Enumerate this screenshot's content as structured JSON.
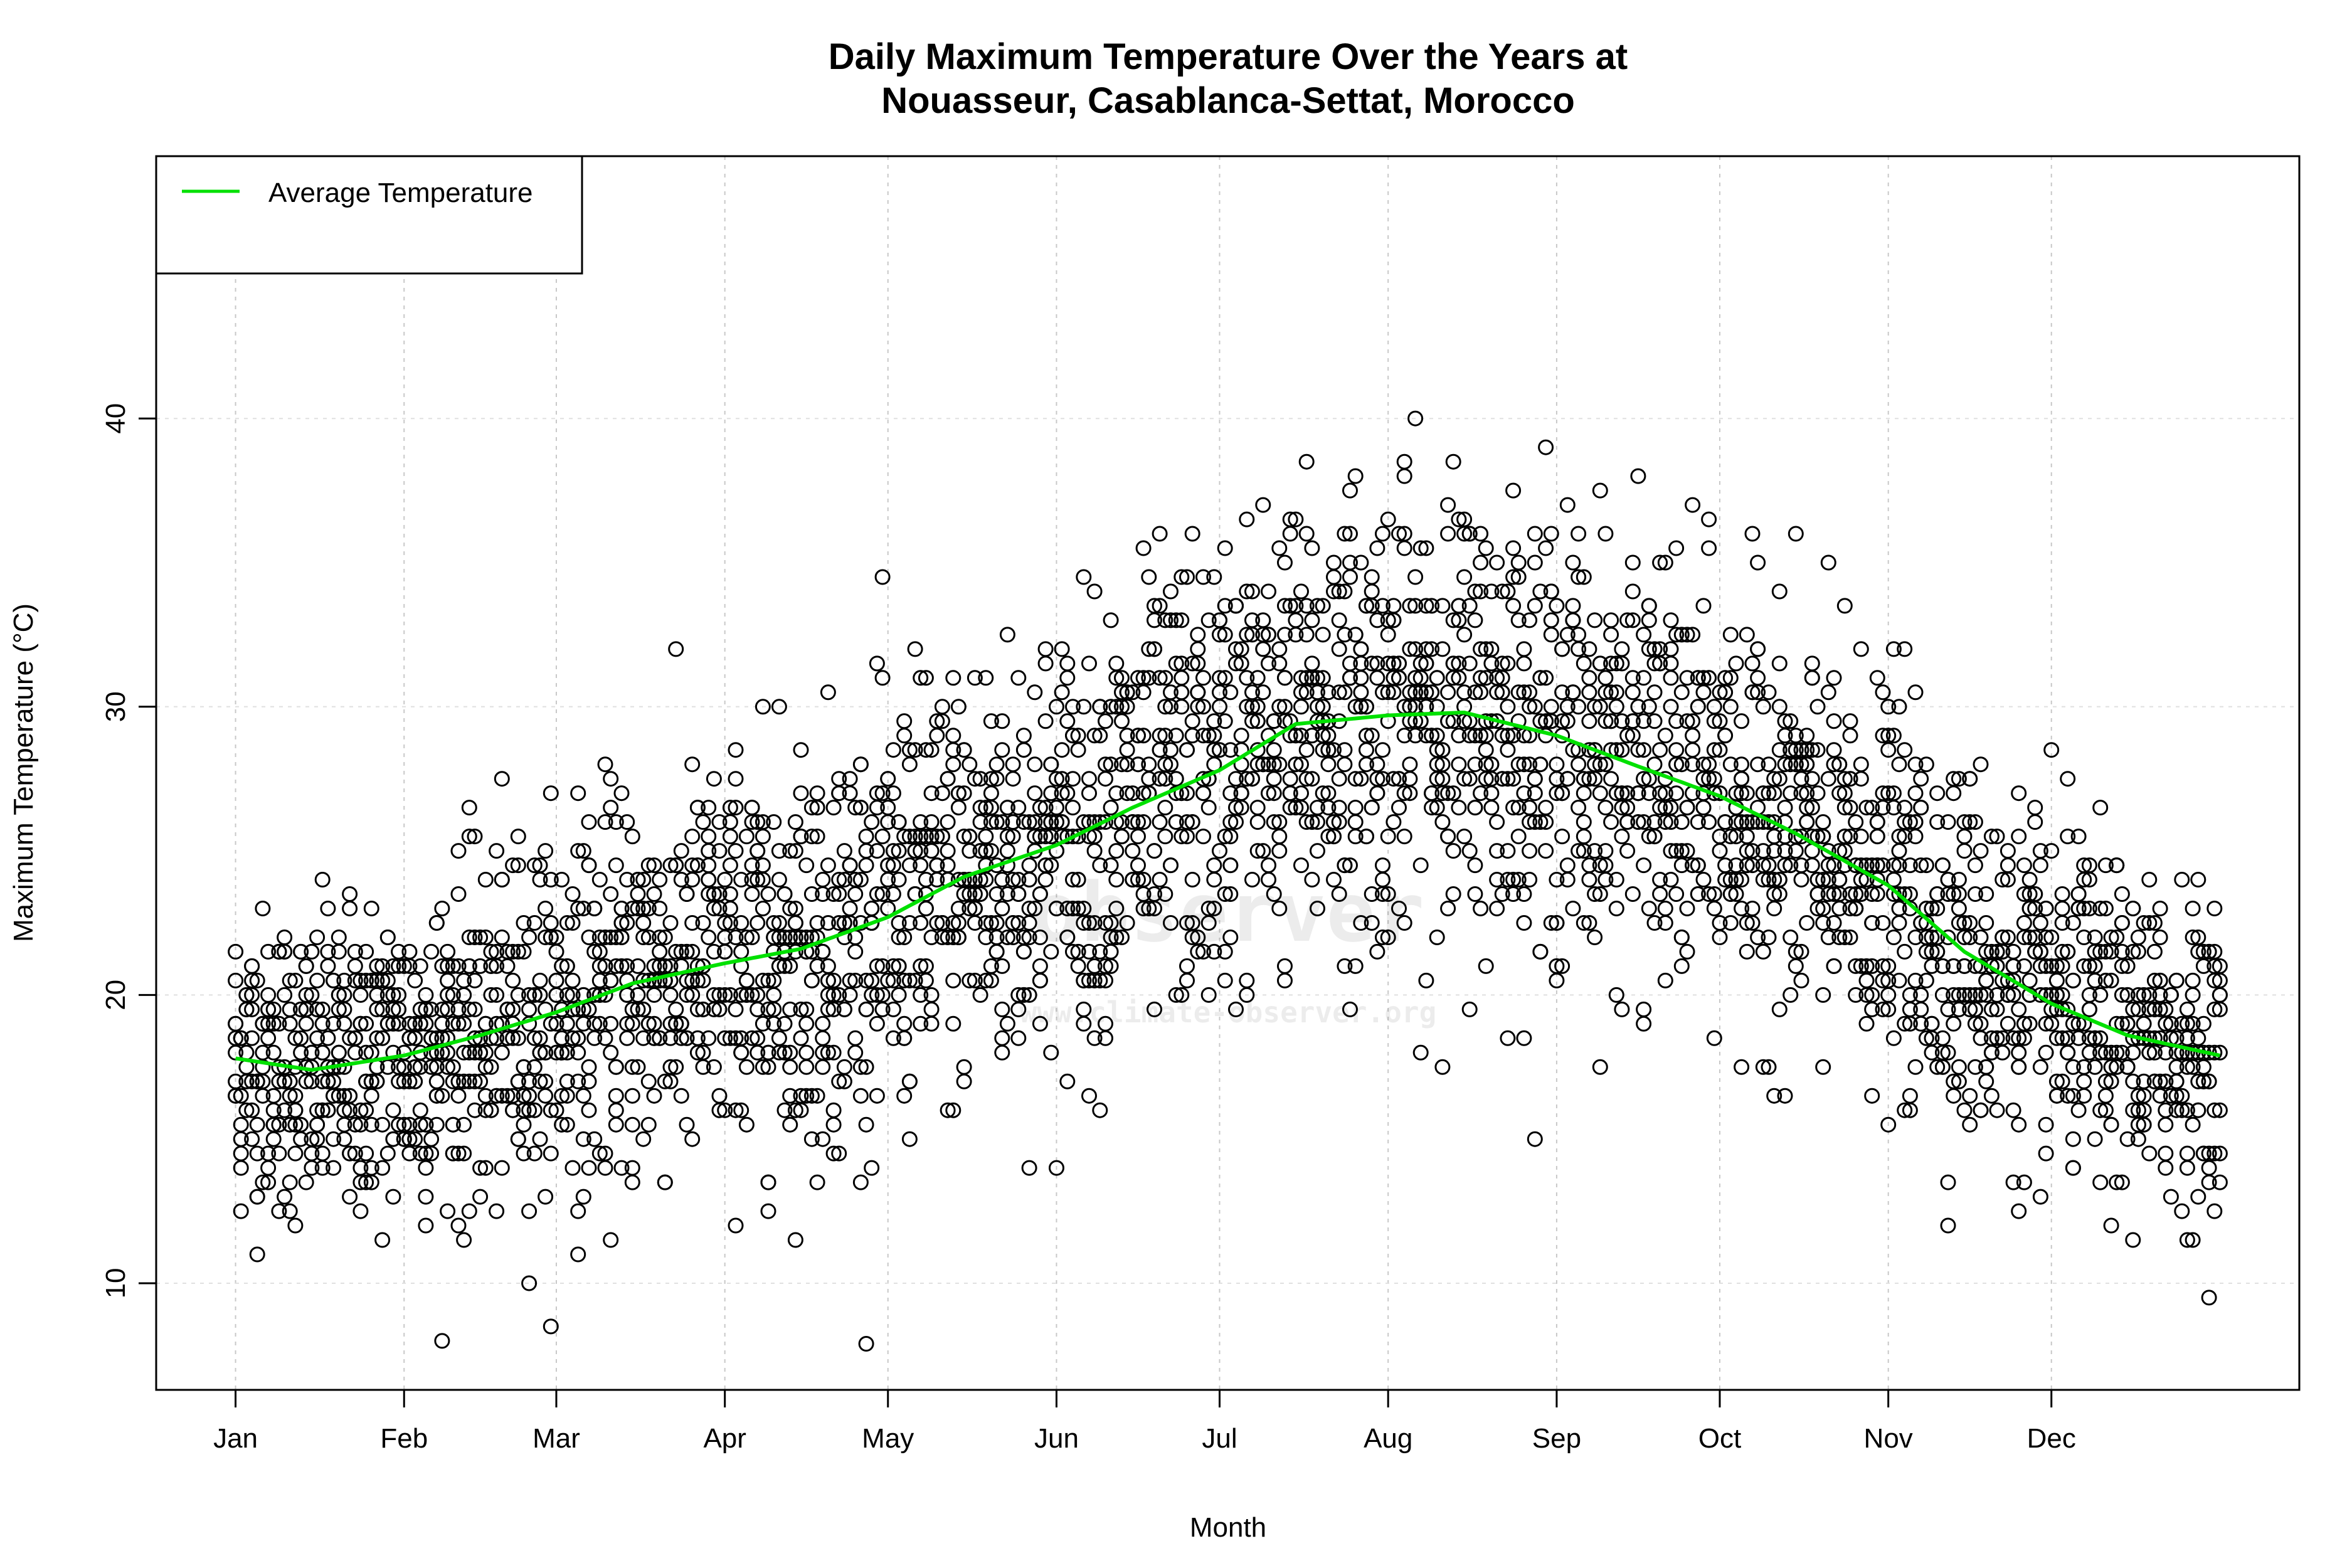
{
  "chart_data": {
    "type": "scatter",
    "title_line1": "Daily Maximum Temperature Over the Years at",
    "title_line2": "Nouasseur, Casablanca-Settat, Morocco",
    "xlabel": "Month",
    "ylabel": "Maximum Temperature (°C)",
    "x_unit": "day of year",
    "xlim": [
      -13.6,
      380.6
    ],
    "ylim": [
      6.3,
      49.1
    ],
    "x_ticks": [
      {
        "day": 1,
        "label": "Jan"
      },
      {
        "day": 32,
        "label": "Feb"
      },
      {
        "day": 60,
        "label": "Mar"
      },
      {
        "day": 91,
        "label": "Apr"
      },
      {
        "day": 121,
        "label": "May"
      },
      {
        "day": 152,
        "label": "Jun"
      },
      {
        "day": 182,
        "label": "Jul"
      },
      {
        "day": 213,
        "label": "Aug"
      },
      {
        "day": 244,
        "label": "Sep"
      },
      {
        "day": 274,
        "label": "Oct"
      },
      {
        "day": 305,
        "label": "Nov"
      },
      {
        "day": 335,
        "label": "Dec"
      }
    ],
    "y_ticks": [
      10,
      20,
      30,
      40
    ],
    "grid": "dotted vertical at month ticks",
    "point_style": "open circle, black",
    "scatter_envelope": {
      "note_days": [
        1,
        15,
        32,
        46,
        60,
        74,
        91,
        105,
        121,
        135,
        152,
        166,
        182,
        196,
        213,
        227,
        244,
        258,
        274,
        288,
        305,
        319,
        335,
        349,
        366
      ],
      "spread_sd": [
        2.6,
        2.6,
        2.8,
        3.0,
        3.2,
        3.4,
        3.5,
        3.6,
        3.7,
        3.8,
        3.8,
        3.8,
        3.9,
        3.9,
        3.9,
        3.9,
        3.8,
        3.7,
        3.6,
        3.5,
        3.4,
        3.2,
        3.0,
        2.8,
        2.6
      ]
    },
    "series": [
      {
        "name": "Average Temperature",
        "type": "line",
        "color": "#00e000",
        "x": [
          1,
          15,
          32,
          46,
          60,
          74,
          91,
          105,
          121,
          135,
          152,
          166,
          182,
          196,
          213,
          227,
          244,
          258,
          274,
          288,
          305,
          319,
          335,
          349,
          366
        ],
        "y": [
          17.8,
          17.4,
          17.9,
          18.6,
          19.4,
          20.4,
          21.1,
          21.6,
          22.7,
          24.1,
          25.2,
          26.5,
          27.8,
          29.4,
          29.7,
          29.8,
          29.0,
          28.0,
          26.9,
          25.6,
          23.8,
          21.5,
          19.7,
          18.6,
          17.9
        ]
      }
    ],
    "legend": {
      "position": "top-left",
      "entries": [
        "Average Temperature"
      ]
    },
    "watermark": "www.climate-observer.org"
  }
}
